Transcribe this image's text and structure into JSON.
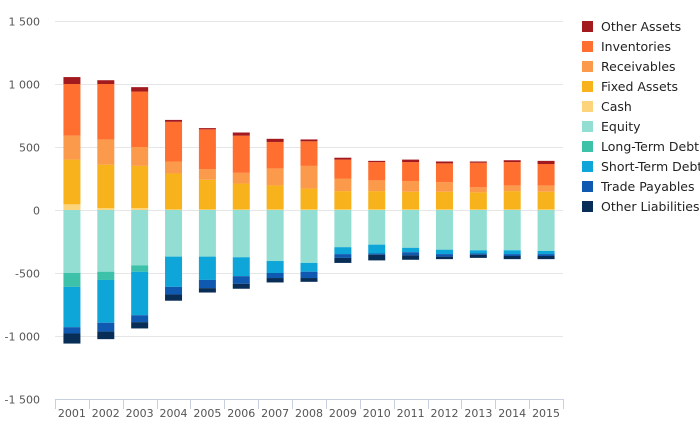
{
  "chart_data": {
    "type": "bar",
    "stacked": true,
    "categories": [
      "2001",
      "2002",
      "2003",
      "2004",
      "2005",
      "2006",
      "2007",
      "2008",
      "2009",
      "2010",
      "2011",
      "2012",
      "2013",
      "2014",
      "2015"
    ],
    "ylim": [
      -1500,
      1500
    ],
    "yticks": [
      {
        "value": 1500,
        "label": "1 500"
      },
      {
        "value": 1000,
        "label": "1 000"
      },
      {
        "value": 500,
        "label": "500"
      },
      {
        "value": 0,
        "label": "0"
      },
      {
        "value": -500,
        "label": "-500"
      },
      {
        "value": -1000,
        "label": "-1 000"
      },
      {
        "value": -1500,
        "label": "-1 500"
      }
    ],
    "grid": true,
    "legend_position": "right",
    "assets": [
      {
        "name": "Cash",
        "color": "#fdd47b",
        "values": [
          45,
          15,
          15,
          5,
          5,
          5,
          5,
          5,
          5,
          5,
          5,
          5,
          5,
          5,
          5
        ]
      },
      {
        "name": "Fixed Assets",
        "color": "#f8b21c",
        "values": [
          355,
          345,
          335,
          285,
          235,
          205,
          190,
          165,
          145,
          145,
          140,
          140,
          135,
          145,
          140
        ]
      },
      {
        "name": "Receivables",
        "color": "#fc9a4c",
        "values": [
          190,
          200,
          150,
          95,
          85,
          85,
          135,
          180,
          100,
          85,
          85,
          75,
          40,
          45,
          50
        ]
      },
      {
        "name": "Inventories",
        "color": "#ff6f30",
        "values": [
          410,
          440,
          440,
          315,
          315,
          295,
          210,
          195,
          150,
          145,
          150,
          150,
          195,
          185,
          170
        ]
      },
      {
        "name": "Other Assets",
        "color": "#a31a1e",
        "values": [
          55,
          30,
          35,
          15,
          10,
          25,
          25,
          15,
          15,
          10,
          20,
          15,
          10,
          15,
          25
        ]
      }
    ],
    "liabilities": [
      {
        "name": "Equity",
        "color": "#92ded3",
        "values": [
          -500,
          -490,
          -440,
          -370,
          -370,
          -375,
          -405,
          -420,
          -295,
          -275,
          -300,
          -315,
          -320,
          -320,
          -325
        ]
      },
      {
        "name": "Long-Term Debt",
        "color": "#3dc1a8",
        "values": [
          -110,
          -65,
          -50,
          0,
          0,
          0,
          0,
          0,
          0,
          0,
          0,
          0,
          0,
          0,
          0
        ]
      },
      {
        "name": "Short-Term Debt",
        "color": "#0ea6d8",
        "values": [
          -320,
          -340,
          -345,
          -240,
          -185,
          -150,
          -95,
          -70,
          -55,
          -70,
          -35,
          -35,
          -25,
          -30,
          -25
        ]
      },
      {
        "name": "Trade Payables",
        "color": "#0f5ab0",
        "values": [
          -50,
          -70,
          -55,
          -60,
          -65,
          -60,
          -40,
          -50,
          -30,
          -10,
          -25,
          -20,
          -10,
          -15,
          -15
        ]
      },
      {
        "name": "Other Liabilities",
        "color": "#082e57",
        "values": [
          -80,
          -60,
          -50,
          -50,
          -35,
          -40,
          -35,
          -30,
          -40,
          -45,
          -35,
          -20,
          -25,
          -25,
          -25
        ]
      }
    ],
    "legend": [
      {
        "label": "Other Assets",
        "color": "#a31a1e"
      },
      {
        "label": "Inventories",
        "color": "#ff6f30"
      },
      {
        "label": "Receivables",
        "color": "#fc9a4c"
      },
      {
        "label": "Fixed Assets",
        "color": "#f8b21c"
      },
      {
        "label": "Cash",
        "color": "#fdd47b"
      },
      {
        "label": "Equity",
        "color": "#92ded3"
      },
      {
        "label": "Long-Term Debt",
        "color": "#3dc1a8"
      },
      {
        "label": "Short-Term Debt",
        "color": "#0ea6d8"
      },
      {
        "label": "Trade Payables",
        "color": "#0f5ab0"
      },
      {
        "label": "Other Liabilities",
        "color": "#082e57"
      }
    ]
  }
}
